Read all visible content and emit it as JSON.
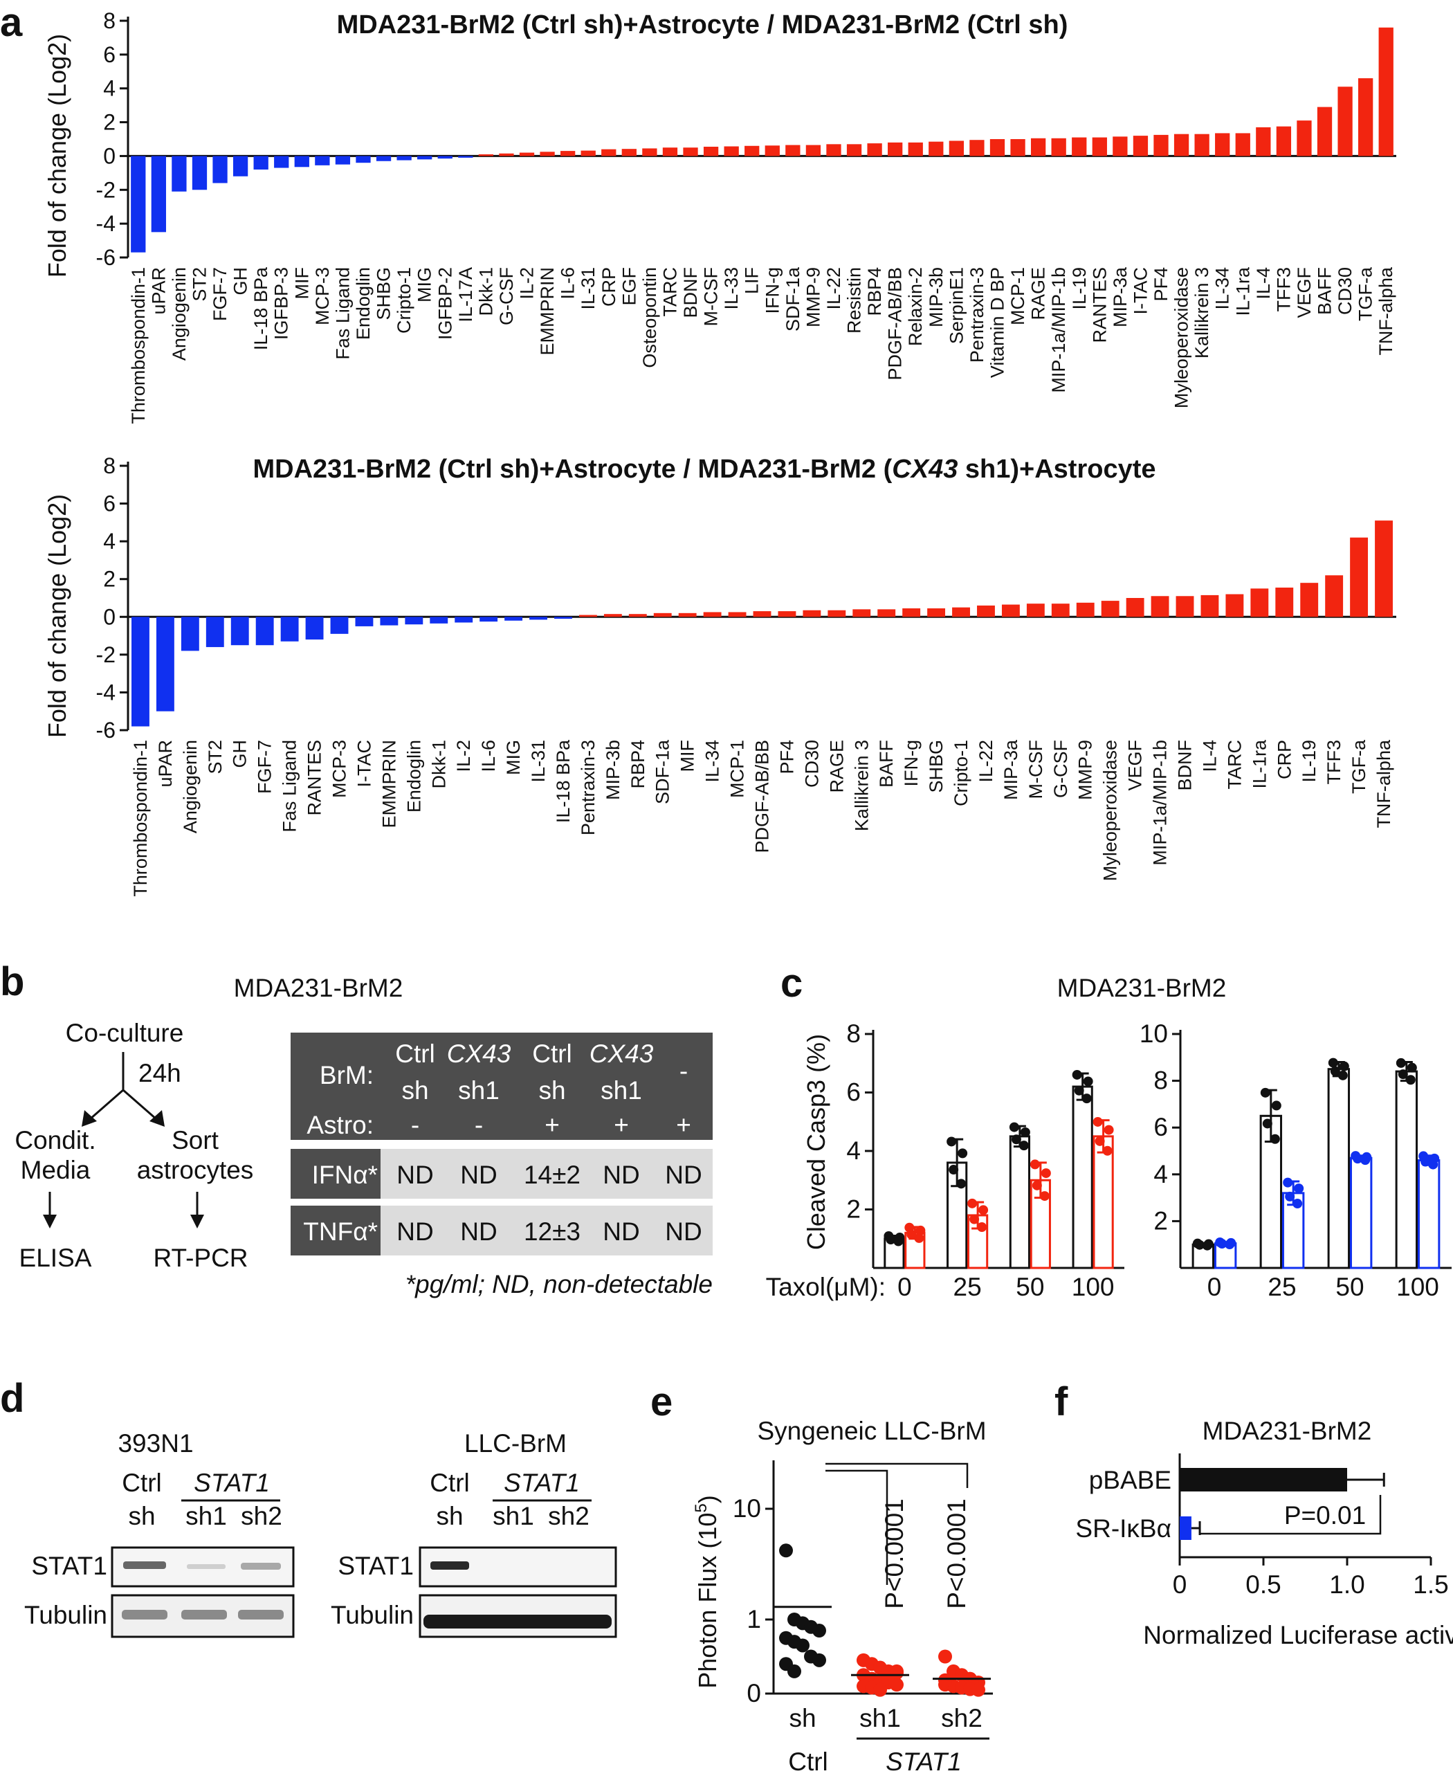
{
  "panels": {
    "a": {
      "label": "a"
    },
    "b": {
      "label": "b"
    },
    "c": {
      "label": "c"
    },
    "d": {
      "label": "d"
    },
    "e": {
      "label": "e"
    },
    "f": {
      "label": "f"
    }
  },
  "chart_data": [
    {
      "type": "bar",
      "title": "MDA231-BrM2 (Ctrl sh)+Astrocyte / MDA231-BrM2 (Ctrl sh)",
      "xlabel": "",
      "ylabel": "Fold of change (Log2)",
      "ylim": [
        -6,
        8
      ],
      "yticks": [
        -6,
        -4,
        -2,
        0,
        2,
        4,
        6,
        8
      ],
      "categories": [
        "Thrombospondin-1",
        "uPAR",
        "Angiogenin",
        "ST2",
        "FGF-7",
        "GH",
        "IL-18 BPa",
        "IGFBP-3",
        "MIF",
        "MCP-3",
        "Fas Ligand",
        "Endoglin",
        "SHBG",
        "Cripto-1",
        "MIG",
        "IGFBP-2",
        "IL-17A",
        "Dkk-1",
        "G-CSF",
        "IL-2",
        "EMMPRIN",
        "IL-6",
        "IL-31",
        "CRP",
        "EGF",
        "Osteopontin",
        "TARC",
        "BDNF",
        "M-CSF",
        "IL-33",
        "LIF",
        "IFN-g",
        "SDF-1a",
        "MMP-9",
        "IL-22",
        "Resistin",
        "RBP4",
        "PDGF-AB/BB",
        "Relaxin-2",
        "MIP-3b",
        "SerpinE1",
        "Pentraxin-3",
        "Vitamin D BP",
        "MCP-1",
        "RAGE",
        "MIP-1a/MIP-1b",
        "IL-19",
        "RANTES",
        "MIP-3a",
        "I-TAC",
        "PF4",
        "Myleoperoxidase",
        "Kallikrein 3",
        "IL-34",
        "IL-1ra",
        "IL-4",
        "TFF3",
        "VEGF",
        "BAFF",
        "CD30",
        "TGF-a",
        "TNF-alpha"
      ],
      "values": [
        -5.7,
        -4.5,
        -2.1,
        -2.0,
        -1.6,
        -1.2,
        -0.8,
        -0.7,
        -0.65,
        -0.55,
        -0.5,
        -0.4,
        -0.3,
        -0.25,
        -0.2,
        -0.15,
        -0.1,
        0.1,
        0.15,
        0.2,
        0.25,
        0.3,
        0.32,
        0.4,
        0.42,
        0.45,
        0.5,
        0.5,
        0.55,
        0.57,
        0.6,
        0.62,
        0.65,
        0.65,
        0.7,
        0.7,
        0.75,
        0.8,
        0.8,
        0.85,
        0.9,
        0.95,
        1.0,
        1.0,
        1.05,
        1.05,
        1.1,
        1.1,
        1.15,
        1.2,
        1.25,
        1.3,
        1.3,
        1.35,
        1.35,
        1.7,
        1.75,
        2.1,
        2.9,
        4.1,
        4.6,
        7.6
      ],
      "colors": {
        "negative": "#1030f0",
        "positive": "#f22510"
      }
    },
    {
      "type": "bar",
      "title_pre": "MDA231-BrM2 (Ctrl sh)+Astrocyte / MDA231-BrM2 (",
      "title_gene": "CX43",
      "title_post": " sh1)+Astrocyte",
      "xlabel": "",
      "ylabel": "Fold of change (Log2)",
      "ylim": [
        -6,
        8
      ],
      "yticks": [
        -6,
        -4,
        -2,
        0,
        2,
        4,
        6,
        8
      ],
      "categories": [
        "Thrombospondin-1",
        "uPAR",
        "Angiogenin",
        "ST2",
        "GH",
        "FGF-7",
        "Fas Ligand",
        "RANTES",
        "MCP-3",
        "I-TAC",
        "EMMPRIN",
        "Endoglin",
        "Dkk-1",
        "IL-2",
        "IL-6",
        "MIG",
        "IL-31",
        "IL-18 BPa",
        "Pentraxin-3",
        "MIP-3b",
        "RBP4",
        "SDF-1a",
        "MIF",
        "IL-34",
        "MCP-1",
        "PDGF-AB/BB",
        "PF4",
        "CD30",
        "RAGE",
        "Kallikrein 3",
        "BAFF",
        "IFN-g",
        "SHBG",
        "Cripto-1",
        "IL-22",
        "MIP-3a",
        "M-CSF",
        "G-CSF",
        "MMP-9",
        "Myleoperoxidase",
        "VEGF",
        "MIP-1a/MIP-1b",
        "BDNF",
        "IL-4",
        "TARC",
        "IL-1ra",
        "CRP",
        "IL-19",
        "TFF3",
        "TGF-a",
        "TNF-alpha"
      ],
      "values": [
        -5.8,
        -5.0,
        -1.8,
        -1.6,
        -1.5,
        -1.5,
        -1.3,
        -1.2,
        -0.9,
        -0.5,
        -0.45,
        -0.4,
        -0.35,
        -0.3,
        -0.25,
        -0.2,
        -0.15,
        -0.1,
        0.1,
        0.15,
        0.15,
        0.2,
        0.2,
        0.25,
        0.25,
        0.3,
        0.3,
        0.35,
        0.35,
        0.4,
        0.4,
        0.45,
        0.45,
        0.5,
        0.6,
        0.65,
        0.7,
        0.7,
        0.75,
        0.85,
        1.0,
        1.1,
        1.1,
        1.15,
        1.2,
        1.5,
        1.55,
        1.8,
        2.2,
        4.2,
        5.1
      ],
      "colors": {
        "negative": "#1030f0",
        "positive": "#f22510"
      }
    },
    {
      "type": "bar",
      "title": "MDA231-BrM2",
      "ylabel": "Cleaved Casp3 (%)",
      "xlabel": "Taxol(μM):",
      "categories": [
        "0",
        "25",
        "50",
        "100"
      ],
      "ylim": [
        0,
        8
      ],
      "yticks": [
        2,
        4,
        6,
        8
      ],
      "series": [
        {
          "name": "black",
          "color": "#111111",
          "values": [
            1.0,
            3.6,
            4.5,
            6.2
          ],
          "errors": [
            0.1,
            0.8,
            0.35,
            0.45
          ]
        },
        {
          "name": "red",
          "color": "#f22510",
          "values": [
            1.2,
            1.8,
            3.0,
            4.5
          ],
          "errors": [
            0.2,
            0.45,
            0.6,
            0.55
          ]
        }
      ]
    },
    {
      "type": "bar",
      "ylabel": "",
      "categories": [
        "0",
        "25",
        "50",
        "100"
      ],
      "ylim": [
        0,
        10
      ],
      "yticks": [
        2,
        4,
        6,
        8,
        10
      ],
      "series": [
        {
          "name": "black",
          "color": "#111111",
          "values": [
            1.0,
            6.5,
            8.5,
            8.4
          ],
          "errors": [
            0.05,
            1.1,
            0.3,
            0.4
          ]
        },
        {
          "name": "blue",
          "color": "#1030f0",
          "values": [
            1.05,
            3.2,
            4.7,
            4.6
          ],
          "errors": [
            0.05,
            0.5,
            0.1,
            0.2
          ]
        }
      ]
    },
    {
      "type": "scatter",
      "title": "Syngeneic LLC-BrM",
      "ylabel": "Photon Flux (10^5)",
      "categories": [
        "sh",
        "sh1",
        "sh2"
      ],
      "yticks": [
        0,
        1,
        10
      ],
      "groups": [
        {
          "name": "Ctrl sh",
          "color": "#111111",
          "mean": 1.3,
          "points": [
            4.2,
            1.0,
            0.95,
            0.9,
            0.85,
            0.75,
            0.7,
            0.65,
            0.5,
            0.45,
            0.4,
            0.3
          ]
        },
        {
          "name": "STAT1 sh1",
          "color": "#f22510",
          "mean": 0.25,
          "points": [
            0.45,
            0.4,
            0.35,
            0.3,
            0.3,
            0.25,
            0.2,
            0.18,
            0.15,
            0.12,
            0.1,
            0.08,
            0.05,
            0.2,
            0.28
          ]
        },
        {
          "name": "STAT1 sh2",
          "color": "#f22510",
          "mean": 0.2,
          "points": [
            0.5,
            0.3,
            0.25,
            0.2,
            0.15,
            0.12,
            0.1,
            0.08,
            0.06,
            0.05,
            0.18
          ]
        }
      ],
      "annotations": [
        "P<0.0001",
        "P<0.0001"
      ]
    },
    {
      "type": "bar",
      "title": "MDA231-BrM2",
      "xlabel": "Normalized Luciferase activity",
      "orientation": "horizontal",
      "categories": [
        "pBABE",
        "SR-IκBα"
      ],
      "values": [
        1.0,
        0.07
      ],
      "errors": [
        0.22,
        0.05
      ],
      "colors": [
        "#111111",
        "#1030f0"
      ],
      "xlim": [
        0,
        1.5
      ],
      "xticks": [
        "0",
        "0.5",
        "1.0",
        "1.5"
      ],
      "annotation": "P=0.01"
    }
  ],
  "panel_b": {
    "title": "MDA231-BrM2",
    "flow": {
      "coculture": "Co-culture",
      "time": "24h",
      "condit": "Condit.",
      "media": "Media",
      "sort": "Sort",
      "astrocytes": "astrocytes",
      "elisa": "ELISA",
      "rtpcr": "RT-PCR"
    },
    "table": {
      "brm_label": "BrM:",
      "astro_label": "Astro:",
      "columns": [
        {
          "line1": "Ctrl",
          "line2": "sh",
          "astro": "-"
        },
        {
          "line1": "CX43",
          "line2": "sh1",
          "astro": "-"
        },
        {
          "line1": "Ctrl",
          "line2": "sh",
          "astro": "+"
        },
        {
          "line1": "CX43",
          "line2": "sh1",
          "astro": "+"
        },
        {
          "line1": "-",
          "astro": "+"
        }
      ],
      "rows": [
        {
          "label": "IFNα*",
          "values": [
            "ND",
            "ND",
            "14±2",
            "ND",
            "ND"
          ]
        },
        {
          "label": "TNFα*",
          "values": [
            "ND",
            "ND",
            "12±3",
            "ND",
            "ND"
          ]
        }
      ],
      "footnote": "*pg/ml; ND, non-detectable"
    }
  },
  "panel_c": {
    "title": "MDA231-BrM2",
    "ylabel": "Cleaved Casp3 (%)",
    "xlabel": "Taxol(μM):"
  },
  "panel_d": {
    "ctrl_line1": "Ctrl",
    "ctrl_line2": "sh",
    "gene": "STAT1",
    "lanes": [
      "sh",
      "sh1",
      "sh2"
    ],
    "bands": [
      "STAT1",
      "Tubulin"
    ],
    "blots": [
      {
        "title": "393N1"
      },
      {
        "title": "LLC-BrM"
      }
    ]
  },
  "panel_e": {
    "title": "Syngeneic LLC-BrM",
    "ylabel_pre": "Photon Flux (10",
    "ylabel_exp": "5",
    "ylabel_post": ")",
    "ctrl_label": "Ctrl",
    "gene_label": "STAT1"
  },
  "panel_f": {
    "title": "MDA231-BrM2",
    "xlabel": "Normalized Luciferase activity"
  }
}
